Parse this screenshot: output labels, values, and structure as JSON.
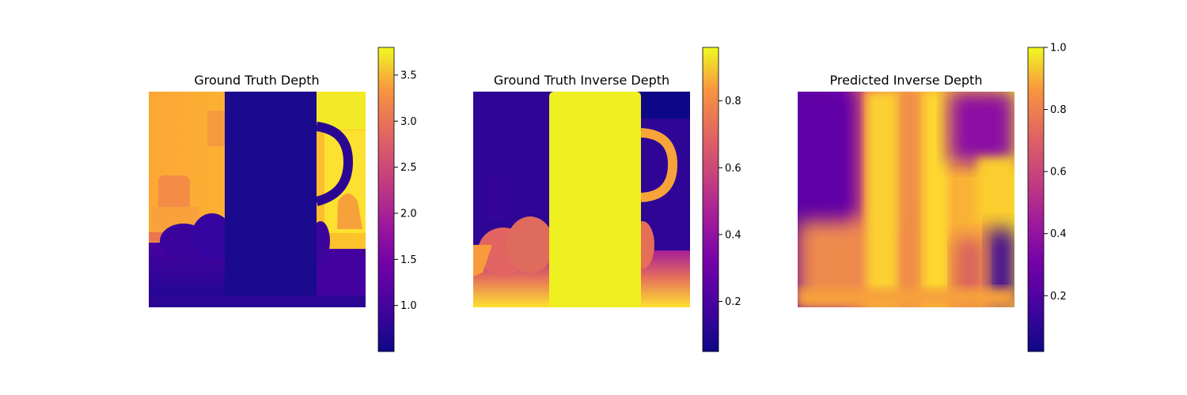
{
  "chart_data": [
    {
      "type": "heatmap",
      "title": "Ground Truth Depth",
      "colormap": "plasma",
      "axes_visible": false,
      "colorbar": {
        "range": [
          0.5,
          3.8
        ],
        "ticks": [
          1.0,
          1.5,
          2.0,
          2.5,
          3.0,
          3.5
        ],
        "tick_labels": [
          "1.0",
          "1.5",
          "2.0",
          "2.5",
          "3.0",
          "3.5"
        ]
      }
    },
    {
      "type": "heatmap",
      "title": "Ground Truth Inverse Depth",
      "colormap": "plasma",
      "axes_visible": false,
      "colorbar": {
        "range": [
          0.05,
          0.96
        ],
        "ticks": [
          0.2,
          0.4,
          0.6,
          0.8
        ],
        "tick_labels": [
          "0.2",
          "0.4",
          "0.6",
          "0.8"
        ]
      }
    },
    {
      "type": "heatmap",
      "title": "Predicted Inverse Depth",
      "colormap": "plasma",
      "axes_visible": false,
      "colorbar": {
        "range": [
          0.02,
          1.0
        ],
        "ticks": [
          0.2,
          0.4,
          0.6,
          0.8,
          1.0
        ],
        "tick_labels": [
          "0.2",
          "0.4",
          "0.6",
          "0.8",
          "1.0"
        ]
      }
    }
  ]
}
